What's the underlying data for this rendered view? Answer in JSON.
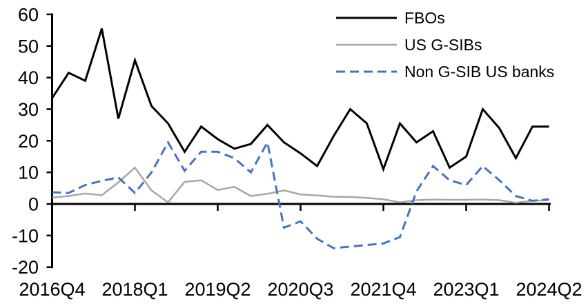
{
  "chart_data": {
    "type": "line",
    "title": "",
    "xlabel": "",
    "ylabel": "",
    "ylim": [
      -20,
      60
    ],
    "y_ticks": [
      60,
      50,
      40,
      30,
      20,
      10,
      0,
      -10,
      -20
    ],
    "x_categories": [
      "2016Q4",
      "2017Q1",
      "2017Q2",
      "2017Q3",
      "2017Q4",
      "2018Q1",
      "2018Q2",
      "2018Q3",
      "2018Q4",
      "2019Q1",
      "2019Q2",
      "2019Q3",
      "2019Q4",
      "2020Q1",
      "2020Q2",
      "2020Q3",
      "2020Q4",
      "2021Q1",
      "2021Q2",
      "2021Q3",
      "2021Q4",
      "2022Q1",
      "2022Q2",
      "2022Q3",
      "2022Q4",
      "2023Q1",
      "2023Q2",
      "2023Q3",
      "2023Q4",
      "2024Q1",
      "2024Q2"
    ],
    "x_axis_tick_labels": [
      "2016Q4",
      "2018Q1",
      "2019Q2",
      "2020Q3",
      "2021Q4",
      "2023Q1",
      "2024Q2"
    ],
    "x_axis_tick_indices": [
      0,
      5,
      10,
      15,
      20,
      25,
      30
    ],
    "grid": "off",
    "legend_position": "top-right",
    "series": [
      {
        "name": "FBOs",
        "color": "#000000",
        "style": "solid",
        "values": [
          33.5,
          41.5,
          39,
          55.5,
          27,
          45.5,
          31,
          25.5,
          16.5,
          24.5,
          20.5,
          17.5,
          19,
          25,
          19.5,
          16,
          12,
          21.5,
          30,
          25.5,
          11,
          25.5,
          19.5,
          23,
          11.5,
          15,
          30,
          24,
          14.5,
          24.5,
          24.5
        ]
      },
      {
        "name": "US G-SIBs",
        "color": "#A6A6A6",
        "style": "solid",
        "values": [
          2,
          2.5,
          3.3,
          2.8,
          6.8,
          11.5,
          4.3,
          0.5,
          7,
          7.5,
          4.4,
          5.4,
          2.5,
          3.2,
          4.3,
          3,
          2.7,
          2.3,
          2.2,
          1.9,
          1.5,
          0.5,
          1.2,
          1.4,
          1.3,
          1.3,
          1.4,
          1.2,
          0.4,
          1,
          1.2
        ]
      },
      {
        "name": "Non G-SIB US banks",
        "color": "#4472C4",
        "style": "dashed",
        "values": [
          3.7,
          3.5,
          6,
          7.3,
          8.4,
          3.5,
          10,
          19.5,
          10.5,
          16.5,
          16.5,
          14.5,
          10,
          19.5,
          -7.5,
          -5.5,
          -11,
          -14,
          -13.5,
          -13,
          -12.5,
          -10.5,
          4,
          12,
          7.5,
          6,
          12,
          7.5,
          2.5,
          1,
          1.5
        ]
      }
    ]
  }
}
